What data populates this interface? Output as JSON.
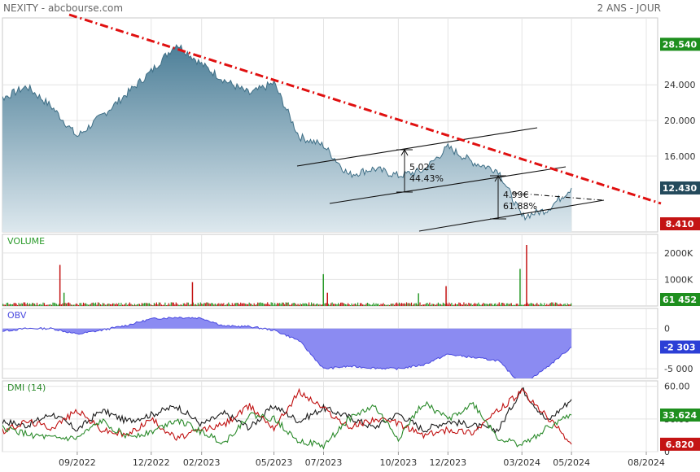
{
  "header": {
    "title": "NEXITY - abcbourse.com",
    "range": "2 ANS - JOUR"
  },
  "chart_data": [
    {
      "type": "area",
      "name": "price",
      "x_dates": [
        "2022-05-01",
        "2022-06-01",
        "2022-07-01",
        "2022-08-01",
        "2022-09-01",
        "2022-10-01",
        "2022-11-01",
        "2022-12-01",
        "2023-01-01",
        "2023-02-01",
        "2023-03-01",
        "2023-04-01",
        "2023-05-01",
        "2023-06-01",
        "2023-07-01",
        "2023-08-01",
        "2023-09-01",
        "2023-10-01",
        "2023-11-01",
        "2023-12-01",
        "2024-01-01",
        "2024-02-01",
        "2024-03-01",
        "2024-04-01",
        "2024-05-01"
      ],
      "y": [
        26.8,
        22.5,
        23.8,
        21.5,
        18.2,
        20.5,
        23.0,
        25.5,
        28.6,
        26.3,
        24.5,
        23.0,
        24.2,
        18.2,
        17.2,
        13.9,
        14.6,
        13.8,
        14.4,
        17.0,
        15.3,
        14.4,
        9.2,
        10.0,
        12.43
      ],
      "ylim": [
        7.5,
        31.5
      ],
      "y_ticks": [
        "24.000",
        "20.000",
        "16.000"
      ],
      "badges": [
        {
          "label": "28.540",
          "value": 28.54,
          "color": "#1e8f1e"
        },
        {
          "label": "12.430",
          "value": 12.43,
          "color": "#244a5c"
        },
        {
          "label": "8.410",
          "value": 8.41,
          "color": "#c41414"
        }
      ],
      "annotations": [
        {
          "line1": "5.02€",
          "line2": "44.43%"
        },
        {
          "line1": "4.99€",
          "line2": "61.88%"
        }
      ],
      "fill_top": "#4d7f98",
      "fill_bottom": "#dde8ee",
      "trendline_color": "#e01010"
    },
    {
      "type": "bar",
      "name": "volume",
      "title": "VOLUME",
      "y_ticks": [
        "2000K",
        "1000K"
      ],
      "ylim": [
        0,
        2700
      ],
      "spikes": [
        {
          "date": "2022-08-10",
          "value": 1550
        },
        {
          "date": "2022-08-15",
          "value": 500
        },
        {
          "date": "2023-01-20",
          "value": 900
        },
        {
          "date": "2023-06-30",
          "value": 1200
        },
        {
          "date": "2023-07-05",
          "value": 500
        },
        {
          "date": "2023-10-25",
          "value": 480
        },
        {
          "date": "2023-11-28",
          "value": 750
        },
        {
          "date": "2024-02-27",
          "value": 1400
        },
        {
          "date": "2024-03-06",
          "value": 2300
        }
      ],
      "badge": {
        "label": "61 452",
        "color": "#1e8f1e"
      }
    },
    {
      "type": "area",
      "name": "obv",
      "title": "OBV",
      "y_ticks": [
        "0",
        "-5 000"
      ],
      "ylim": [
        -6200,
        2500
      ],
      "x_dates": [
        "2022-05-01",
        "2022-06-01",
        "2022-07-01",
        "2022-08-01",
        "2022-09-01",
        "2022-10-01",
        "2022-11-01",
        "2022-12-01",
        "2023-01-01",
        "2023-02-01",
        "2023-03-01",
        "2023-04-01",
        "2023-05-01",
        "2023-06-01",
        "2023-07-01",
        "2023-08-01",
        "2023-09-01",
        "2023-10-01",
        "2023-11-01",
        "2023-12-01",
        "2024-01-01",
        "2024-02-01",
        "2024-03-01",
        "2024-04-01",
        "2024-05-01"
      ],
      "y": [
        0,
        -300,
        0,
        0,
        -700,
        -200,
        400,
        1200,
        1400,
        1300,
        300,
        250,
        -200,
        -1500,
        -5000,
        -4700,
        -4900,
        -5000,
        -4500,
        -3200,
        -3600,
        -4000,
        -7000,
        -4800,
        -2303
      ],
      "badge": {
        "label": "-2 303",
        "color": "#2c3fd6"
      },
      "fill": "#8b8bf2",
      "line": "#4a4ae0"
    },
    {
      "type": "line",
      "name": "dmi",
      "title": "DMI (14)",
      "y_ticks": [
        "60.00",
        "30.00",
        "0"
      ],
      "ylim": [
        0,
        65
      ],
      "x_dates": [
        "2022-05-01",
        "2022-06-01",
        "2022-07-01",
        "2022-08-01",
        "2022-09-01",
        "2022-10-01",
        "2022-11-01",
        "2022-12-01",
        "2023-01-01",
        "2023-02-01",
        "2023-03-01",
        "2023-04-01",
        "2023-05-01",
        "2023-06-01",
        "2023-07-01",
        "2023-08-01",
        "2023-09-01",
        "2023-10-01",
        "2023-11-01",
        "2023-12-01",
        "2024-01-01",
        "2024-02-01",
        "2024-03-01",
        "2024-04-01",
        "2024-05-01"
      ],
      "series": [
        {
          "color": "#1a1a1a",
          "values": [
            20,
            28,
            24,
            35,
            20,
            38,
            28,
            34,
            42,
            25,
            35,
            22,
            42,
            28,
            40,
            32,
            22,
            35,
            20,
            28,
            24,
            20,
            58,
            28,
            48
          ]
        },
        {
          "color": "#c01010",
          "values": [
            32,
            18,
            28,
            22,
            38,
            20,
            15,
            30,
            12,
            20,
            25,
            42,
            22,
            55,
            40,
            22,
            30,
            26,
            15,
            20,
            18,
            38,
            55,
            32,
            6.8
          ]
        },
        {
          "color": "#2a8a2a",
          "values": [
            15,
            22,
            16,
            12,
            12,
            28,
            14,
            18,
            30,
            18,
            8,
            34,
            30,
            10,
            5,
            30,
            42,
            12,
            45,
            30,
            44,
            12,
            6,
            22,
            33.6
          ]
        }
      ],
      "badges": [
        {
          "label": "33.624",
          "value": 33.624,
          "color": "#1e8f1e"
        },
        {
          "label": "6.820",
          "value": 6.82,
          "color": "#c41414"
        }
      ]
    }
  ],
  "x_axis": {
    "domain": [
      "2022-06-01",
      "2024-08-15"
    ],
    "ticks": [
      {
        "date": "2022-09-01",
        "label": "09/2022"
      },
      {
        "date": "2022-12-01",
        "label": "12/2022"
      },
      {
        "date": "2023-02-01",
        "label": "02/2023"
      },
      {
        "date": "2023-05-01",
        "label": "05/2023"
      },
      {
        "date": "2023-07-01",
        "label": "07/2023"
      },
      {
        "date": "2023-10-01",
        "label": "10/2023"
      },
      {
        "date": "2023-12-01",
        "label": "12/2023"
      },
      {
        "date": "2024-03-01",
        "label": "03/2024"
      },
      {
        "date": "2024-05-01",
        "label": "05/2024"
      },
      {
        "date": "2024-08-01",
        "label": "08/2024"
      }
    ]
  }
}
